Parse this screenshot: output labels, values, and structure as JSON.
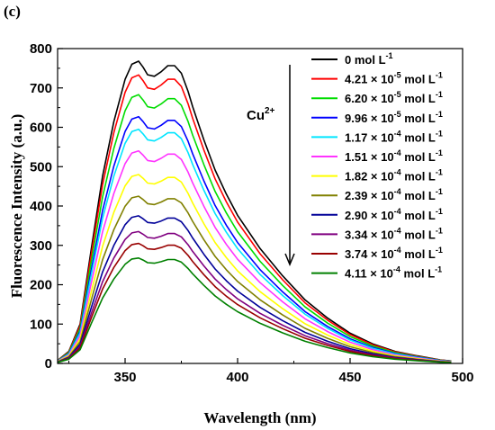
{
  "panel_label": "(c)",
  "annotation": {
    "text": "Cu",
    "superscript": "2+"
  },
  "chart_data": {
    "type": "line",
    "title": "",
    "xlabel": "Wavelength (nm)",
    "ylabel": "Fluorescence Intensity (a.u.)",
    "xlim": [
      320,
      500
    ],
    "ylim": [
      0,
      800
    ],
    "xticks": [
      350,
      400,
      450,
      500
    ],
    "yticks": [
      0,
      100,
      200,
      300,
      400,
      500,
      600,
      700,
      800
    ],
    "xtick_labels": [
      "350",
      "400",
      "450",
      "500"
    ],
    "ytick_labels": [
      "0",
      "100",
      "200",
      "300",
      "400",
      "500",
      "600",
      "700",
      "800"
    ],
    "grid": false,
    "legend_position": "right",
    "x": [
      320,
      325,
      330,
      335,
      340,
      345,
      350,
      353,
      356,
      358,
      360,
      363,
      366,
      369,
      372,
      375,
      378,
      380,
      385,
      390,
      395,
      400,
      410,
      420,
      430,
      440,
      450,
      460,
      470,
      480,
      490,
      495
    ],
    "series": [
      {
        "name": "0 mol L-1",
        "label_main": "0 mol L",
        "label_exp": "-1",
        "color": "#000000",
        "peak": 768
      },
      {
        "name": "4.21 × 10-5 mol L-1",
        "label_main": "4.21 × 10",
        "label_exp1": "-5",
        "label_mid": " mol L",
        "label_exp2": "-1",
        "color": "#ff0000",
        "peak": 733
      },
      {
        "name": "6.20 × 10-5 mol L-1",
        "label_main": "6.20 × 10",
        "label_exp1": "-5",
        "label_mid": " mol L",
        "label_exp2": "-1",
        "color": "#00dd00",
        "peak": 683
      },
      {
        "name": "9.96 × 10-5 mol L-1",
        "label_main": "9.96 × 10",
        "label_exp1": "-5",
        "label_mid": " mol L",
        "label_exp2": "-1",
        "color": "#0000ff",
        "peak": 627
      },
      {
        "name": "1.17 × 10-4 mol L-1",
        "label_main": "1.17 × 10",
        "label_exp1": "-4",
        "label_mid": " mol L",
        "label_exp2": "-1",
        "color": "#00e5ff",
        "peak": 595
      },
      {
        "name": "1.51 × 10-4 mol L-1",
        "label_main": "1.51 × 10",
        "label_exp1": "-4",
        "label_mid": " mol L",
        "label_exp2": "-1",
        "color": "#ff33ff",
        "peak": 540
      },
      {
        "name": "1.82 × 10-4 mol L-1",
        "label_main": "1.82 × 10",
        "label_exp1": "-4",
        "label_mid": " mol L",
        "label_exp2": "-1",
        "color": "#ffff00",
        "peak": 480
      },
      {
        "name": "2.39 × 10-4 mol L-1",
        "label_main": "2.39 × 10",
        "label_exp1": "-4",
        "label_mid": " mol L",
        "label_exp2": "-1",
        "color": "#808000",
        "peak": 425
      },
      {
        "name": "2.90 × 10-4 mol L-1",
        "label_main": "2.90 × 10",
        "label_exp1": "-4",
        "label_mid": " mol L",
        "label_exp2": "-1",
        "color": "#000099",
        "peak": 375
      },
      {
        "name": "3.34 × 10-4 mol L-1",
        "label_main": "3.34 × 10",
        "label_exp1": "-4",
        "label_mid": " mol L",
        "label_exp2": "-1",
        "color": "#800080",
        "peak": 335
      },
      {
        "name": "3.74 × 10-4 mol L-1",
        "label_main": "3.74 × 10",
        "label_exp1": "-4",
        "label_mid": " mol L",
        "label_exp2": "-1",
        "color": "#990000",
        "peak": 305
      },
      {
        "name": "4.11 × 10-4 mol L-1",
        "label_main": "4.11 × 10",
        "label_exp1": "-4",
        "label_mid": " mol L",
        "label_exp2": "-1",
        "color": "#008000",
        "peak": 268
      }
    ],
    "shape": [
      0.01,
      0.04,
      0.13,
      0.38,
      0.62,
      0.8,
      0.94,
      0.99,
      1.0,
      0.98,
      0.955,
      0.95,
      0.965,
      0.985,
      0.985,
      0.96,
      0.9,
      0.85,
      0.74,
      0.64,
      0.56,
      0.49,
      0.38,
      0.29,
      0.21,
      0.15,
      0.1,
      0.065,
      0.04,
      0.025,
      0.012,
      0.008
    ]
  }
}
